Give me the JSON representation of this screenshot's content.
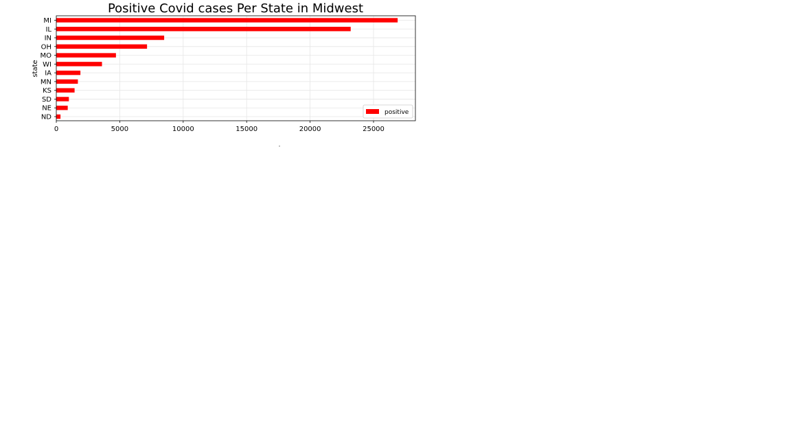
{
  "chart_data": {
    "type": "bar",
    "orientation": "horizontal",
    "title": "Positive Covid cases Per State in Midwest",
    "xlabel": "",
    "ylabel": "state",
    "categories": [
      "MI",
      "IL",
      "IN",
      "OH",
      "MO",
      "WI",
      "IA",
      "MN",
      "KS",
      "SD",
      "NE",
      "ND"
    ],
    "series": [
      {
        "name": "positive",
        "values": [
          26900,
          23200,
          8500,
          7150,
          4700,
          3600,
          1900,
          1700,
          1440,
          990,
          900,
          330
        ],
        "color": "#ff0000"
      }
    ],
    "xticks": [
      "0",
      "5000",
      "10000",
      "15000",
      "20000",
      "25000"
    ],
    "xlim": [
      0,
      28300
    ],
    "grid": true,
    "legend_position": "lower-right"
  }
}
